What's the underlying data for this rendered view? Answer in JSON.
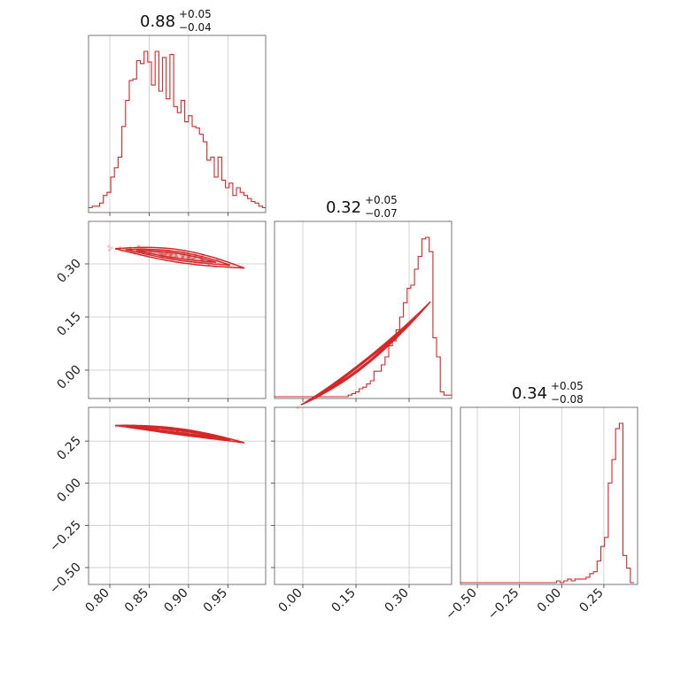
{
  "chart_data": {
    "type": "corner",
    "params": [
      {
        "range": [
          0.773,
          0.998
        ],
        "ticks": [
          0.8,
          0.85,
          0.9,
          0.95
        ],
        "tick_labels": [
          "0.80",
          "0.85",
          "0.90",
          "0.95"
        ],
        "title": {
          "median": "0.88",
          "plus": "+0.05",
          "minus": "−0.04"
        },
        "hist": {
          "start": 0.773,
          "width": 0.0047,
          "counts": [
            2,
            3,
            3,
            5,
            10,
            12,
            22,
            28,
            35,
            55,
            72,
            85,
            86,
            98,
            96,
            104,
            97,
            82,
            104,
            78,
            100,
            73,
            102,
            68,
            64,
            72,
            58,
            62,
            55,
            54,
            50,
            45,
            33,
            35,
            22,
            35,
            20,
            15,
            18,
            10,
            15,
            12,
            10,
            8,
            6,
            5,
            3,
            2
          ]
        }
      },
      {
        "range": [
          -0.08,
          0.42
        ],
        "ticks": [
          0.0,
          0.15,
          0.3
        ],
        "tick_labels": [
          "0.00",
          "0.15",
          "0.30"
        ],
        "title": {
          "median": "0.32",
          "plus": "+0.05",
          "minus": "−0.07"
        },
        "hist": {
          "start": -0.08,
          "width": 0.0104,
          "counts": [
            0,
            0,
            0,
            0,
            0,
            0,
            0,
            0,
            0,
            0,
            0,
            0,
            0,
            0,
            0,
            0,
            0,
            0,
            0,
            0,
            1,
            2,
            3,
            5,
            6,
            8,
            10,
            16,
            16,
            20,
            25,
            32,
            35,
            42,
            50,
            59,
            68,
            70,
            80,
            88,
            99,
            100,
            91,
            37,
            25,
            3,
            1,
            1
          ]
        }
      },
      {
        "range": [
          -0.6,
          0.45
        ],
        "ticks": [
          -0.5,
          -0.25,
          0.0,
          0.25
        ],
        "tick_labels": [
          "−0.50",
          "−0.25",
          "0.00",
          "0.25"
        ],
        "title": {
          "median": "0.34",
          "plus": "+0.05",
          "minus": "−0.08"
        },
        "hist": {
          "start": -0.6,
          "width": 0.0219,
          "counts": [
            0,
            0,
            0,
            0,
            0,
            0,
            0,
            0,
            0,
            0,
            0,
            0,
            0,
            0,
            0,
            0,
            0,
            0,
            0,
            0,
            0,
            0,
            0,
            0,
            0,
            0,
            1,
            0,
            1,
            2,
            1,
            2,
            2,
            2,
            3,
            5,
            6,
            12,
            20,
            25,
            55,
            68,
            85,
            88,
            15,
            8,
            0
          ]
        }
      }
    ],
    "correlations": {
      "1_0": {
        "a": 0.348,
        "b": -0.12,
        "c": -0.92
      },
      "2_0": {
        "a": 0.35,
        "b": -0.14,
        "c": -2.1
      },
      "2_1": {
        "a": 0.392,
        "b": 0.85,
        "c": 1.6
      }
    },
    "color": "#d62728",
    "grid": true
  }
}
